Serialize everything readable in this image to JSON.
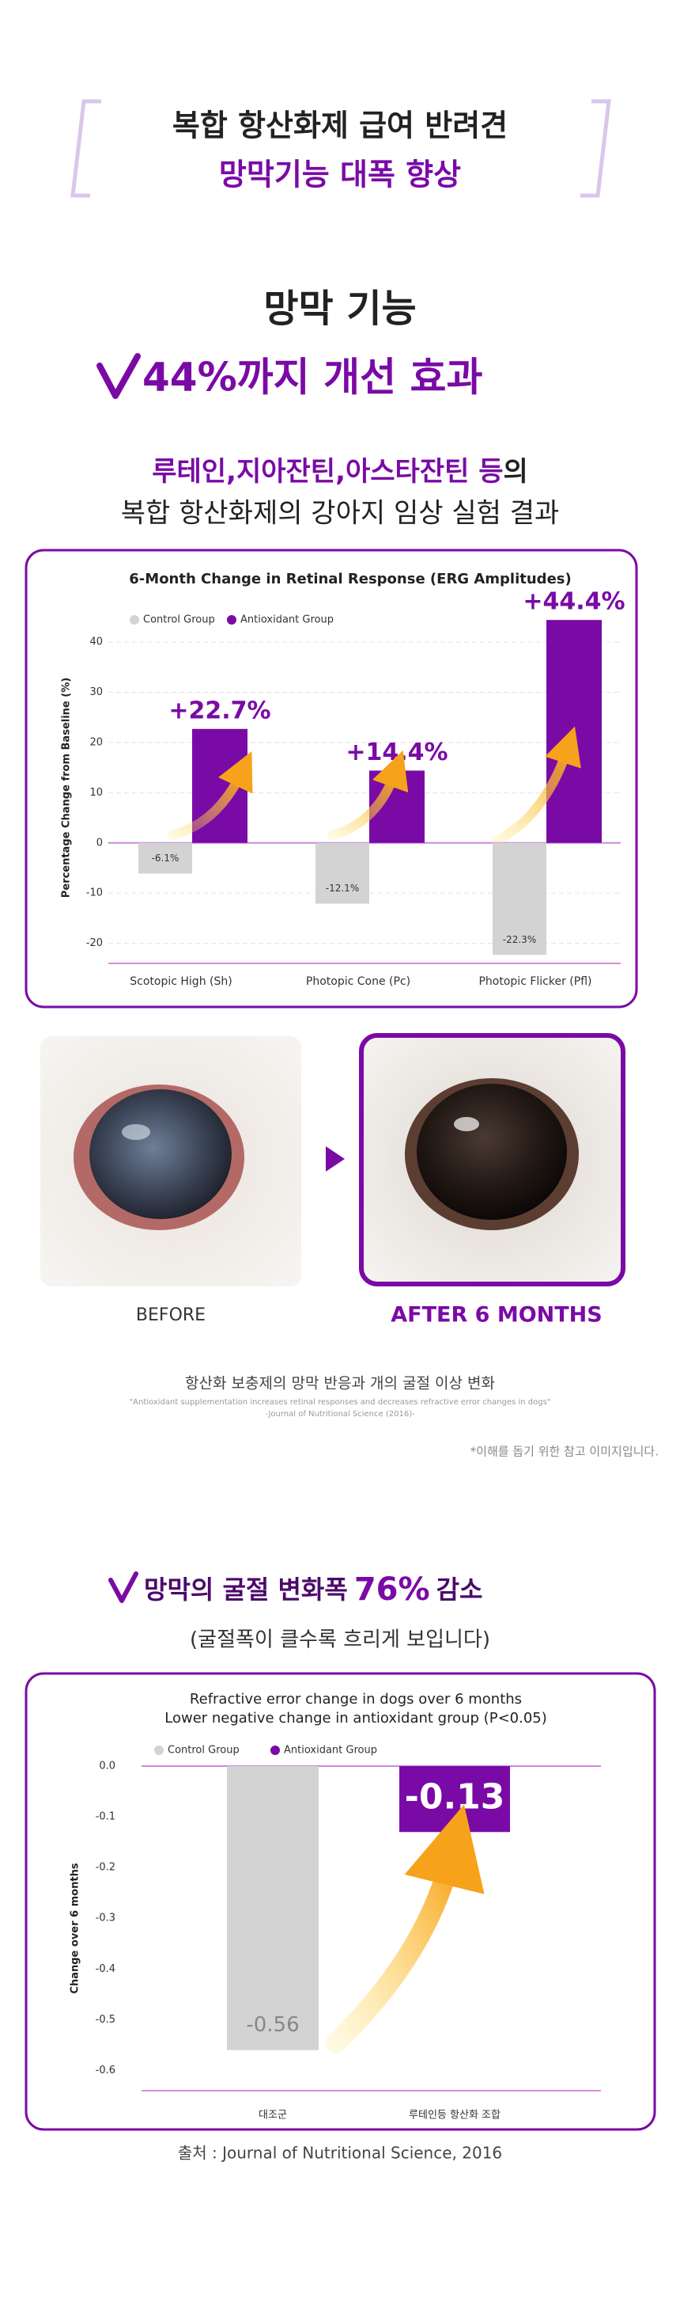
{
  "header": {
    "line1": "복합 항산화제 급여 반려견",
    "line2": "망막기능 대폭 향상"
  },
  "intro": {
    "title": "망막 기능",
    "highlight": "44%까지 개선 효과",
    "lead_colored": "루테인,지아잔틴,아스타잔틴 등",
    "lead_plain": "의",
    "line2": "복합 항산화제의 강아지 임상 실험 결과"
  },
  "chart_data": [
    {
      "type": "bar",
      "title": "6-Month Change in Retinal Response (ERG Amplitudes)",
      "y_label": "Percentage Change from Baseline (%)",
      "categories": [
        "Scotopic High (Sh)",
        "Photopic Cone (Pc)",
        "Photopic Flicker (Pfl)"
      ],
      "series": [
        {
          "name": "Control Group",
          "color": "#d3d3d3",
          "values": [
            -6.1,
            -12.1,
            -22.3
          ],
          "value_labels": [
            "-6.1%",
            "-12.1%",
            "-22.3%"
          ]
        },
        {
          "name": "Antioxidant Group",
          "color": "#7a0aa6",
          "values": [
            22.7,
            14.4,
            44.4
          ],
          "value_labels": [
            "+22.7%",
            "+14.4%",
            "+44.4%"
          ]
        }
      ],
      "ylim": [
        -24,
        46
      ],
      "yticks": [
        -20,
        -10,
        0,
        10,
        20,
        30,
        40
      ],
      "grid": true
    },
    {
      "type": "bar",
      "title": "Refractive error change in dogs over 6 months",
      "subtitle": "Lower negative change in antioxidant group (P<0.05)",
      "y_label": "Change over 6 months",
      "categories": [
        "대조군",
        "루테인등 항산화 조합"
      ],
      "series": [
        {
          "name": "Control Group",
          "color": "#d3d3d3",
          "values": [
            -0.56,
            null
          ]
        },
        {
          "name": "Antioxidant Group",
          "color": "#7a0aa6",
          "values": [
            null,
            -0.13
          ]
        }
      ],
      "ylim": [
        -0.64,
        0
      ],
      "yticks": [
        {
          "value": 0,
          "label": "0.0"
        },
        -0.1,
        -0.2,
        -0.3,
        -0.4,
        -0.5,
        -0.6
      ],
      "grid": false
    }
  ],
  "photos": {
    "before": "BEFORE",
    "after": "AFTER 6 MONTHS"
  },
  "caption": {
    "title": "항산화 보충제의 망막 반응과 개의 굴절 이상 변화",
    "quote": "\"Antioxidant supplementation increases retinal responses and decreases refractive error changes in dogs\"",
    "source": "-Journal of Nutritional Science (2016)-",
    "note": "*이해를 돕기 위한 참고 이미지입니다."
  },
  "section2": {
    "title_start": "망막의 굴절 변화폭",
    "title_number": "76%",
    "title_end": "감소",
    "subtitle": "(굴절폭이 클수록 흐리게 보입니다)"
  },
  "source": "출처 : Journal of Nutritional Science, 2016"
}
